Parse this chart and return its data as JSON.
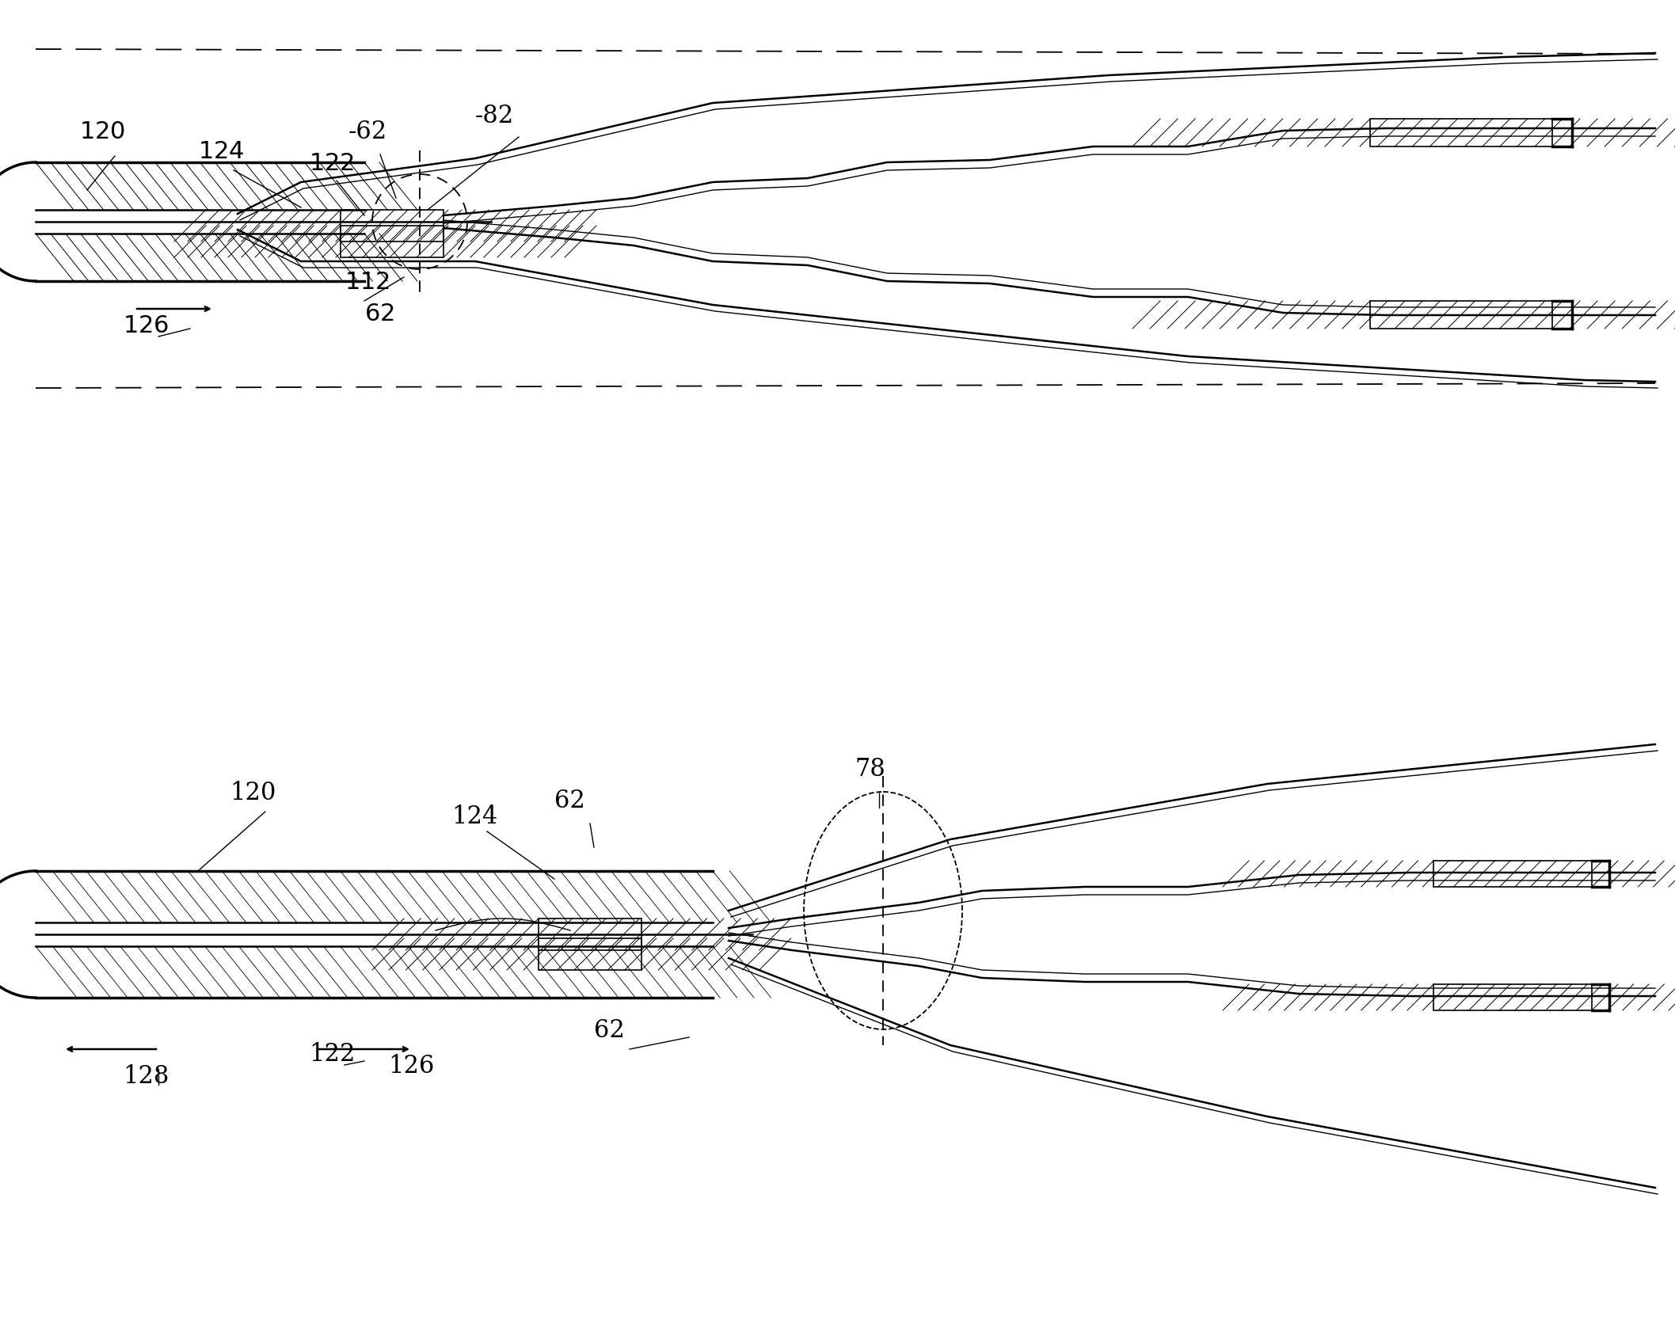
{
  "bg_color": "#ffffff",
  "line_color": "#000000",
  "fig_width": 21.15,
  "fig_height": 16.86,
  "dpi": 100
}
